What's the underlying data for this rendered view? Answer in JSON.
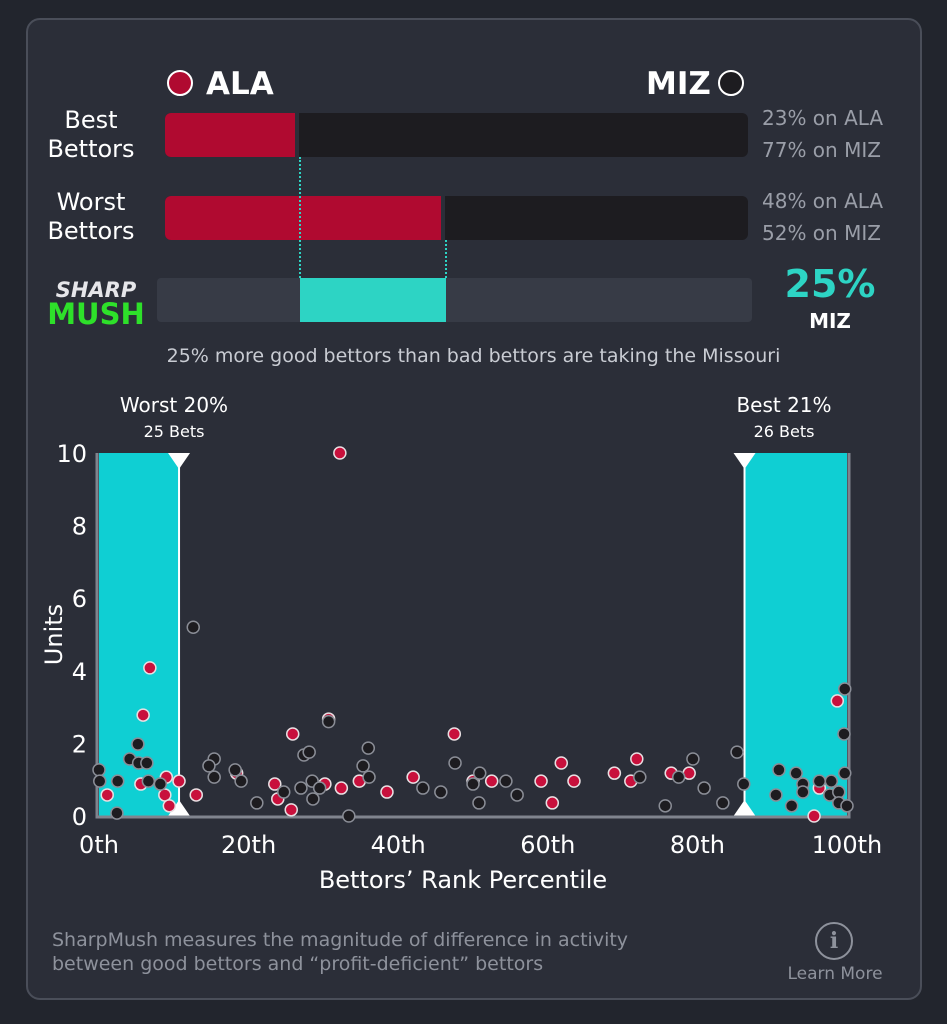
{
  "teams": {
    "home": {
      "name": "ALA",
      "color": "#b00a30"
    },
    "away": {
      "name": "MIZ",
      "color": "#1d1c20"
    }
  },
  "rows": [
    {
      "label_line1": "Best",
      "label_line2": "Bettors",
      "ala_pct": 23,
      "ala_text": "23% on ALA",
      "miz_text": "77% on MIZ"
    },
    {
      "label_line1": "Worst",
      "label_line2": "Bettors",
      "ala_pct": 48,
      "ala_text": "48% on ALA",
      "miz_text": "52% on MIZ"
    }
  ],
  "sharpmush": {
    "logo_top": "SHARP",
    "logo_bottom": "MUSH",
    "value": "25%",
    "team": "MIZ",
    "value_pct": 25,
    "accent": "#2dd4c4",
    "description": "25% more good bettors than bad bettors are taking the Missouri"
  },
  "chart_data": {
    "type": "scatter",
    "xlabel": "Bettors’ Rank Percentile",
    "ylabel": "Units",
    "xlim": [
      0,
      100
    ],
    "ylim": [
      0,
      10
    ],
    "xticks": [
      "0th",
      "20th",
      "40th",
      "60th",
      "80th",
      "100th"
    ],
    "yticks": [
      "0",
      "2",
      "4",
      "6",
      "8",
      "10"
    ],
    "worst_region": {
      "label": "Worst 20%",
      "bets": "25 Bets",
      "to_pct": 10.7
    },
    "best_region": {
      "label": "Best 21%",
      "bets": "26 Bets",
      "from_pct": 86.3
    },
    "series": [
      {
        "name": "ALA",
        "color": "#c8103c",
        "points": [
          [
            6.8,
            4.08
          ],
          [
            5.9,
            2.78
          ],
          [
            5.6,
            0.88
          ],
          [
            9.0,
            1.07
          ],
          [
            10.7,
            0.96
          ],
          [
            1.1,
            0.58
          ],
          [
            8.8,
            0.58
          ],
          [
            9.4,
            0.28
          ],
          [
            13.0,
            0.58
          ],
          [
            18.4,
            1.18
          ],
          [
            23.5,
            0.88
          ],
          [
            23.9,
            0.47
          ],
          [
            25.7,
            0.17
          ],
          [
            25.9,
            2.26
          ],
          [
            30.2,
            0.88
          ],
          [
            30.7,
            2.67
          ],
          [
            32.4,
            0.77
          ],
          [
            32.2,
            10
          ],
          [
            34.8,
            0.96
          ],
          [
            38.5,
            0.66
          ],
          [
            42.0,
            1.07
          ],
          [
            47.5,
            2.26
          ],
          [
            50.0,
            0.96
          ],
          [
            52.5,
            0.96
          ],
          [
            59.1,
            0.96
          ],
          [
            61.8,
            1.46
          ],
          [
            63.5,
            0.96
          ],
          [
            60.6,
            0.36
          ],
          [
            68.9,
            1.18
          ],
          [
            71.9,
            1.57
          ],
          [
            71.1,
            0.96
          ],
          [
            76.5,
            1.18
          ],
          [
            78.9,
            1.18
          ],
          [
            96.3,
            0.77
          ],
          [
            98.7,
            3.17
          ],
          [
            95.6,
            0
          ]
        ]
      },
      {
        "name": "MIZ",
        "color": "#1d1c20",
        "points": [
          [
            5.2,
            1.98
          ],
          [
            4.1,
            1.57
          ],
          [
            5.3,
            1.46
          ],
          [
            6.4,
            1.46
          ],
          [
            0,
            1.27
          ],
          [
            0.1,
            0.96
          ],
          [
            2.5,
            0.96
          ],
          [
            6.6,
            0.96
          ],
          [
            8.2,
            0.88
          ],
          [
            2.4,
            0.08
          ],
          [
            12.6,
            5.2
          ],
          [
            15.4,
            1.57
          ],
          [
            14.7,
            1.38
          ],
          [
            15.4,
            1.07
          ],
          [
            18.2,
            1.27
          ],
          [
            19.0,
            0.96
          ],
          [
            21.1,
            0.36
          ],
          [
            24.7,
            0.66
          ],
          [
            27.4,
            1.68
          ],
          [
            28.1,
            1.76
          ],
          [
            27.0,
            0.77
          ],
          [
            28.5,
            0.96
          ],
          [
            28.6,
            0.47
          ],
          [
            29.5,
            0.77
          ],
          [
            30.7,
            2.6
          ],
          [
            33.4,
            0
          ],
          [
            35.3,
            1.38
          ],
          [
            36.1,
            1.07
          ],
          [
            36.0,
            1.87
          ],
          [
            43.3,
            0.77
          ],
          [
            45.7,
            0.66
          ],
          [
            47.6,
            1.46
          ],
          [
            50.0,
            0.88
          ],
          [
            50.9,
            1.18
          ],
          [
            50.8,
            0.36
          ],
          [
            54.4,
            0.96
          ],
          [
            55.9,
            0.58
          ],
          [
            72.3,
            1.07
          ],
          [
            75.7,
            0.28
          ],
          [
            77.5,
            1.07
          ],
          [
            79.4,
            1.57
          ],
          [
            80.9,
            0.77
          ],
          [
            83.4,
            0.36
          ],
          [
            85.3,
            1.76
          ],
          [
            86.2,
            0.88
          ],
          [
            90.9,
            1.27
          ],
          [
            93.2,
            1.18
          ],
          [
            90.5,
            0.58
          ],
          [
            92.6,
            0.28
          ],
          [
            94.1,
            0.88
          ],
          [
            94.1,
            0.66
          ],
          [
            96.3,
            0.96
          ],
          [
            97.9,
            0.96
          ],
          [
            97.7,
            0.58
          ],
          [
            98.9,
            0.66
          ],
          [
            98.9,
            0.36
          ],
          [
            100,
            0.28
          ],
          [
            99.7,
            1.18
          ],
          [
            99.6,
            2.26
          ],
          [
            99.7,
            3.5
          ]
        ]
      }
    ]
  },
  "footer": {
    "text_line1": "SharpMush measures the magnitude of difference in activity",
    "text_line2": "between good bettors and “profit-deficient” bettors",
    "learn_more": "Learn More",
    "info_glyph": "i"
  }
}
